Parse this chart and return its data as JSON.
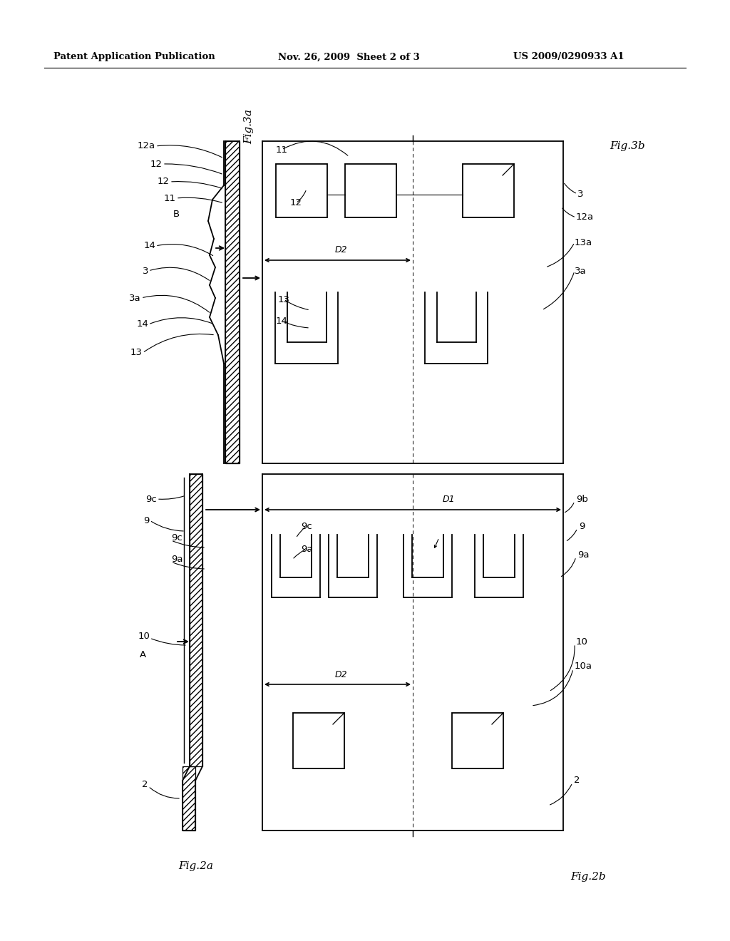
{
  "bg_color": "#ffffff",
  "header_left": "Patent Application Publication",
  "header_mid": "Nov. 26, 2009  Sheet 2 of 3",
  "header_right": "US 2009/0290933 A1",
  "line_color": "#000000"
}
